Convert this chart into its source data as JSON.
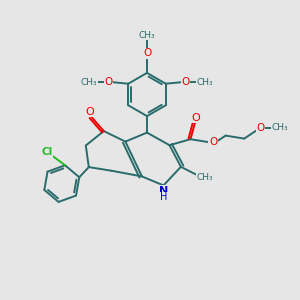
{
  "bg_color": "#e6e6e6",
  "bond_color": "#2a6b6b",
  "bond_width": 1.4,
  "o_color": "#ee0000",
  "n_color": "#0000cc",
  "cl_color": "#22bb22",
  "figsize": [
    3.0,
    3.0
  ],
  "dpi": 100,
  "xlim": [
    0,
    10
  ],
  "ylim": [
    0,
    10
  ]
}
